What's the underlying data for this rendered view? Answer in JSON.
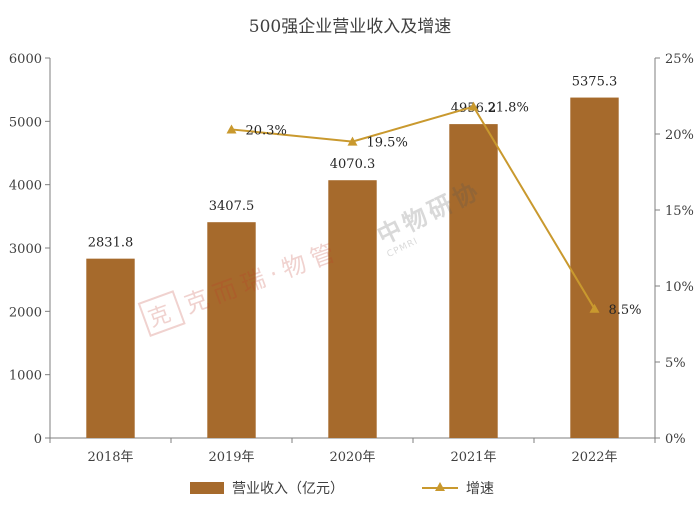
{
  "chart_data": {
    "type": "bar",
    "title": "500强企业营业收入及增速",
    "categories": [
      "2018年",
      "2019年",
      "2020年",
      "2021年",
      "2022年"
    ],
    "series": [
      {
        "name": "营业收入（亿元）",
        "kind": "bar",
        "axis": "left",
        "values": [
          2831.8,
          3407.5,
          4070.3,
          4956.2,
          5375.3
        ],
        "labels": [
          "2831.8",
          "3407.5",
          "4070.3",
          "4956.2",
          "5375.3"
        ],
        "color": "#A66A2C"
      },
      {
        "name": "增速",
        "kind": "line",
        "axis": "right",
        "values": [
          null,
          20.3,
          19.5,
          21.8,
          8.5
        ],
        "labels": [
          "",
          "20.3%",
          "19.5%",
          "21.8%",
          "8.5%"
        ],
        "color": "#C9992E"
      }
    ],
    "y_left": {
      "min": 0,
      "max": 6000,
      "ticks": [
        "0",
        "1000",
        "2000",
        "3000",
        "4000",
        "5000",
        "6000"
      ]
    },
    "y_right": {
      "min": 0,
      "max": 25,
      "ticks": [
        "0%",
        "5%",
        "10%",
        "15%",
        "20%",
        "25%"
      ]
    },
    "grid": false,
    "legend_position": "bottom"
  },
  "watermarks": {
    "left": "克而瑞·物管",
    "left_seal": "克",
    "right": "中物研协",
    "right_sub": "CPMRI"
  }
}
